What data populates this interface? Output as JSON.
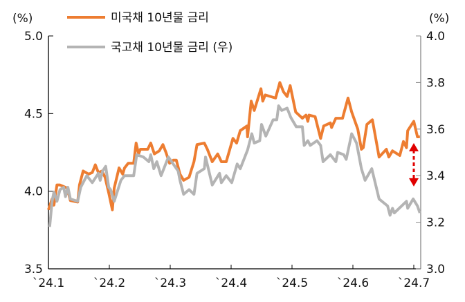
{
  "chart_data": {
    "type": "line",
    "title": "",
    "x_unit": "months since 2024-01 start",
    "x_ticks": [
      "`24.1",
      "`24.2",
      "`24.3",
      "`24.4",
      "`24.5",
      "`24.6",
      "`24.7"
    ],
    "y_left": {
      "label": "(%)",
      "range": [
        3.5,
        5.0
      ],
      "ticks": [
        "3.5",
        "4.0",
        "4.5",
        "5.0"
      ]
    },
    "y_right": {
      "label": "(%)",
      "range": [
        3.0,
        4.0
      ],
      "ticks": [
        "3.0",
        "3.2",
        "3.4",
        "3.6",
        "3.8",
        "4.0"
      ]
    },
    "legend_position": "top-left",
    "series": [
      {
        "name": "미국채 10년물 금리",
        "axis": "left",
        "color": "#ED7D31",
        "points": [
          [
            0,
            3.88
          ],
          [
            0.06,
            3.95
          ],
          [
            0.09,
            3.91
          ],
          [
            0.14,
            4.04
          ],
          [
            0.19,
            4.04
          ],
          [
            0.25,
            4.03
          ],
          [
            0.31,
            4.02
          ],
          [
            0.36,
            3.94
          ],
          [
            0.48,
            3.93
          ],
          [
            0.51,
            4.04
          ],
          [
            0.57,
            4.13
          ],
          [
            0.66,
            4.11
          ],
          [
            0.72,
            4.12
          ],
          [
            0.77,
            4.17
          ],
          [
            0.82,
            4.12
          ],
          [
            0.88,
            4.13
          ],
          [
            0.93,
            4.09
          ],
          [
            0.99,
            3.99
          ],
          [
            1.05,
            3.88
          ],
          [
            1.08,
            4.02
          ],
          [
            1.16,
            4.15
          ],
          [
            1.22,
            4.11
          ],
          [
            1.25,
            4.15
          ],
          [
            1.31,
            4.18
          ],
          [
            1.4,
            4.18
          ],
          [
            1.44,
            4.31
          ],
          [
            1.48,
            4.24
          ],
          [
            1.51,
            4.27
          ],
          [
            1.63,
            4.27
          ],
          [
            1.68,
            4.31
          ],
          [
            1.74,
            4.24
          ],
          [
            1.82,
            4.26
          ],
          [
            1.88,
            4.3
          ],
          [
            1.93,
            4.25
          ],
          [
            1.99,
            4.18
          ],
          [
            2.05,
            4.2
          ],
          [
            2.1,
            4.2
          ],
          [
            2.16,
            4.11
          ],
          [
            2.22,
            4.07
          ],
          [
            2.31,
            4.09
          ],
          [
            2.39,
            4.19
          ],
          [
            2.44,
            4.3
          ],
          [
            2.56,
            4.31
          ],
          [
            2.61,
            4.27
          ],
          [
            2.69,
            4.19
          ],
          [
            2.78,
            4.24
          ],
          [
            2.84,
            4.19
          ],
          [
            2.92,
            4.19
          ],
          [
            3.03,
            4.34
          ],
          [
            3.09,
            4.31
          ],
          [
            3.15,
            4.39
          ],
          [
            3.26,
            4.42
          ],
          [
            3.27,
            4.35
          ],
          [
            3.33,
            4.58
          ],
          [
            3.38,
            4.52
          ],
          [
            3.49,
            4.66
          ],
          [
            3.52,
            4.58
          ],
          [
            3.56,
            4.62
          ],
          [
            3.73,
            4.6
          ],
          [
            3.8,
            4.7
          ],
          [
            3.86,
            4.64
          ],
          [
            3.92,
            4.61
          ],
          [
            3.97,
            4.68
          ],
          [
            4.06,
            4.51
          ],
          [
            4.17,
            4.47
          ],
          [
            4.23,
            4.49
          ],
          [
            4.26,
            4.45
          ],
          [
            4.28,
            4.49
          ],
          [
            4.38,
            4.48
          ],
          [
            4.47,
            4.34
          ],
          [
            4.52,
            4.42
          ],
          [
            4.63,
            4.44
          ],
          [
            4.65,
            4.41
          ],
          [
            4.72,
            4.47
          ],
          [
            4.83,
            4.47
          ],
          [
            4.92,
            4.6
          ],
          [
            4.98,
            4.51
          ],
          [
            5.08,
            4.4
          ],
          [
            5.14,
            4.27
          ],
          [
            5.17,
            4.28
          ],
          [
            5.23,
            4.43
          ],
          [
            5.32,
            4.46
          ],
          [
            5.43,
            4.22
          ],
          [
            5.55,
            4.27
          ],
          [
            5.59,
            4.22
          ],
          [
            5.65,
            4.26
          ],
          [
            5.77,
            4.23
          ],
          [
            5.83,
            4.32
          ],
          [
            5.88,
            4.28
          ],
          [
            5.9,
            4.39
          ],
          [
            6.0,
            4.45
          ],
          [
            6.06,
            4.35
          ],
          [
            6.1,
            4.35
          ]
        ]
      },
      {
        "name": "국고채 10년물 금리 (우)",
        "axis": "right",
        "color": "#B4B4B4",
        "points": [
          [
            0.02,
            3.18
          ],
          [
            0.06,
            3.29
          ],
          [
            0.09,
            3.33
          ],
          [
            0.14,
            3.29
          ],
          [
            0.19,
            3.34
          ],
          [
            0.25,
            3.35
          ],
          [
            0.28,
            3.31
          ],
          [
            0.32,
            3.35
          ],
          [
            0.36,
            3.3
          ],
          [
            0.48,
            3.29
          ],
          [
            0.53,
            3.35
          ],
          [
            0.63,
            3.4
          ],
          [
            0.72,
            3.37
          ],
          [
            0.82,
            3.41
          ],
          [
            0.85,
            3.38
          ],
          [
            0.89,
            3.42
          ],
          [
            0.94,
            3.44
          ],
          [
            0.99,
            3.35
          ],
          [
            1.02,
            3.34
          ],
          [
            1.08,
            3.29
          ],
          [
            1.19,
            3.38
          ],
          [
            1.25,
            3.4
          ],
          [
            1.4,
            3.4
          ],
          [
            1.45,
            3.49
          ],
          [
            1.56,
            3.48
          ],
          [
            1.65,
            3.46
          ],
          [
            1.68,
            3.49
          ],
          [
            1.73,
            3.43
          ],
          [
            1.78,
            3.46
          ],
          [
            1.85,
            3.4
          ],
          [
            1.97,
            3.48
          ],
          [
            2.05,
            3.45
          ],
          [
            2.13,
            3.42
          ],
          [
            2.16,
            3.38
          ],
          [
            2.22,
            3.32
          ],
          [
            2.31,
            3.34
          ],
          [
            2.39,
            3.32
          ],
          [
            2.44,
            3.41
          ],
          [
            2.56,
            3.43
          ],
          [
            2.58,
            3.48
          ],
          [
            2.69,
            3.36
          ],
          [
            2.81,
            3.41
          ],
          [
            2.84,
            3.37
          ],
          [
            2.92,
            3.4
          ],
          [
            3.01,
            3.37
          ],
          [
            3.1,
            3.45
          ],
          [
            3.15,
            3.43
          ],
          [
            3.27,
            3.51
          ],
          [
            3.34,
            3.58
          ],
          [
            3.38,
            3.54
          ],
          [
            3.47,
            3.55
          ],
          [
            3.5,
            3.62
          ],
          [
            3.57,
            3.57
          ],
          [
            3.69,
            3.64
          ],
          [
            3.75,
            3.64
          ],
          [
            3.78,
            3.7
          ],
          [
            3.83,
            3.68
          ],
          [
            3.92,
            3.69
          ],
          [
            3.98,
            3.65
          ],
          [
            4.07,
            3.61
          ],
          [
            4.17,
            3.61
          ],
          [
            4.2,
            3.53
          ],
          [
            4.26,
            3.55
          ],
          [
            4.3,
            3.53
          ],
          [
            4.41,
            3.55
          ],
          [
            4.47,
            3.53
          ],
          [
            4.51,
            3.46
          ],
          [
            4.63,
            3.49
          ],
          [
            4.72,
            3.46
          ],
          [
            4.75,
            3.5
          ],
          [
            4.85,
            3.49
          ],
          [
            4.89,
            3.47
          ],
          [
            4.98,
            3.58
          ],
          [
            5.06,
            3.54
          ],
          [
            5.14,
            3.43
          ],
          [
            5.2,
            3.38
          ],
          [
            5.31,
            3.43
          ],
          [
            5.43,
            3.3
          ],
          [
            5.57,
            3.27
          ],
          [
            5.61,
            3.23
          ],
          [
            5.65,
            3.26
          ],
          [
            5.68,
            3.24
          ],
          [
            5.88,
            3.29
          ],
          [
            5.9,
            3.26
          ],
          [
            5.99,
            3.3
          ],
          [
            6.06,
            3.27
          ],
          [
            6.1,
            3.24
          ]
        ]
      }
    ],
    "annotations": [
      {
        "type": "double-arrow",
        "color": "#E00000",
        "x": 6.0,
        "from_left_value": 4.31,
        "to_left_value": 4.03
      }
    ]
  }
}
